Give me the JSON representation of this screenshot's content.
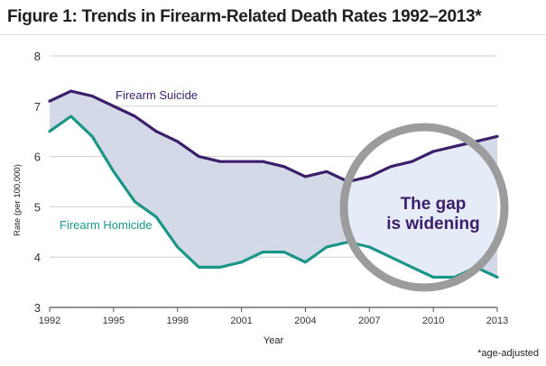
{
  "title": "Figure 1: Trends in Firearm-Related Death Rates 1992–2013*",
  "footnote": "*age-adjusted",
  "chart_data": {
    "type": "line",
    "xlabel": "Year",
    "ylabel": "Rate (per 100,000)",
    "xlim": [
      1992,
      2013
    ],
    "ylim": [
      3,
      8
    ],
    "x_ticks": [
      "1992",
      "1995",
      "1998",
      "2001",
      "2004",
      "2007",
      "2010",
      "2013"
    ],
    "y_ticks": [
      "3",
      "4",
      "5",
      "6",
      "7",
      "8"
    ],
    "x": [
      1992,
      1993,
      1994,
      1995,
      1996,
      1997,
      1998,
      1999,
      2000,
      2001,
      2002,
      2003,
      2004,
      2005,
      2006,
      2007,
      2008,
      2009,
      2010,
      2011,
      2012,
      2013
    ],
    "series": [
      {
        "name": "Firearm Suicide",
        "color": "#3b1f6b",
        "values": [
          7.1,
          7.3,
          7.2,
          7.0,
          6.8,
          6.5,
          6.3,
          6.0,
          5.9,
          5.9,
          5.9,
          5.8,
          5.6,
          5.7,
          5.5,
          5.6,
          5.8,
          5.9,
          6.1,
          6.2,
          6.3,
          6.4
        ]
      },
      {
        "name": "Firearm Homicide",
        "color": "#1a9688",
        "values": [
          6.5,
          6.8,
          6.4,
          5.7,
          5.1,
          4.8,
          4.2,
          3.8,
          3.8,
          3.9,
          4.1,
          4.1,
          3.9,
          4.2,
          4.3,
          4.2,
          4.0,
          3.8,
          3.6,
          3.6,
          3.8,
          3.6
        ]
      }
    ],
    "gap_fill_color": "#d4d9e8",
    "annotation": {
      "text_line1": "The gap",
      "text_line2": "is widening",
      "text_color": "#3b1f6b",
      "circle_fill": "#e6ecf7",
      "circle_ring": "#9c9c9c"
    },
    "grid": "horizontal",
    "legend": "inline labels"
  }
}
